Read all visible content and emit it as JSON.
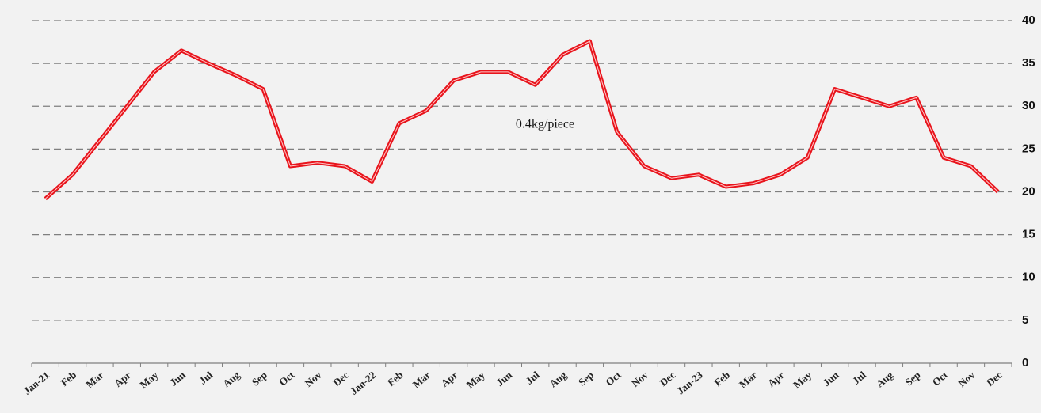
{
  "chart_data": {
    "type": "line",
    "annotations": [
      "0.4kg/piece"
    ],
    "categories": [
      "Jan-21",
      "Feb",
      "Mar",
      "Apr",
      "May",
      "Jun",
      "Jul",
      "Aug",
      "Sep",
      "Oct",
      "Nov",
      "Dec",
      "Jan-22",
      "Feb",
      "Mar",
      "Apr",
      "May",
      "Jun",
      "Jul",
      "Aug",
      "Sep",
      "Oct",
      "Nov",
      "Dec",
      "Jan-23",
      "Feb",
      "Mar",
      "Apr",
      "May",
      "Jun",
      "Jul",
      "Aug",
      "Sep",
      "Oct",
      "Nov",
      "Dec"
    ],
    "values": [
      19.2,
      22,
      26,
      30,
      34,
      36.5,
      35,
      33.6,
      32,
      23,
      23.4,
      23,
      21.2,
      28,
      29.5,
      33,
      34,
      34,
      32.5,
      36,
      37.6,
      27,
      23,
      21.6,
      22,
      20.6,
      21,
      22,
      24,
      32,
      31,
      30,
      31,
      24,
      23,
      20
    ],
    "color": "#e8141c",
    "ylim": [
      0,
      40
    ],
    "yticks": [
      0,
      5,
      10,
      15,
      20,
      25,
      30,
      35,
      40
    ],
    "grid": true,
    "y_axis_side": "right"
  }
}
